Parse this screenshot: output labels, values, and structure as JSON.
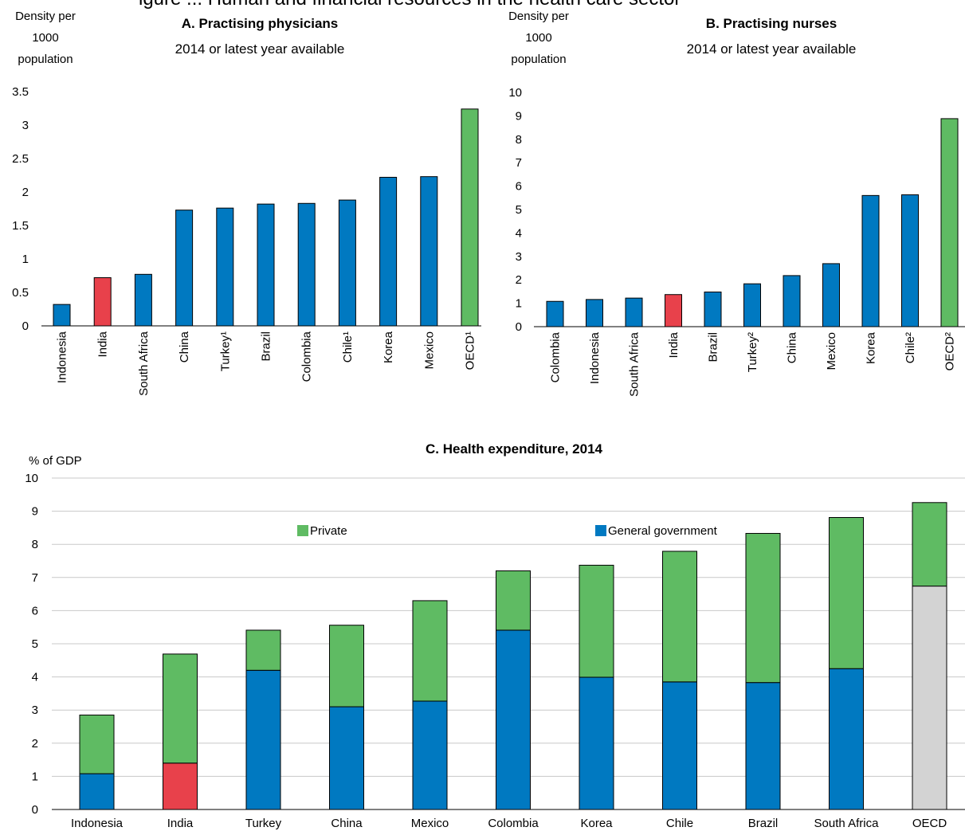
{
  "header_fragment": "igure ... Human and financial resources in the health care sector",
  "chart_data": [
    {
      "type": "bar",
      "title": "A. Practising physicians",
      "subtitle": "2014 or latest year available",
      "ylabel": [
        "Density per",
        "1000",
        "population"
      ],
      "ylim": [
        0,
        3.5
      ],
      "yticks": [
        "0",
        "0.5",
        "1",
        "1.5",
        "2",
        "2.5",
        "3",
        "3.5"
      ],
      "categories": [
        "Indonesia",
        "India",
        "South Africa",
        "China",
        "Turkey¹",
        "Brazil",
        "Colombia",
        "Chile¹",
        "Korea",
        "Mexico",
        "OECD¹"
      ],
      "values": [
        0.32,
        0.72,
        0.77,
        1.73,
        1.76,
        1.82,
        1.83,
        1.88,
        2.22,
        2.23,
        3.24
      ],
      "colors": [
        "#0079c1",
        "#e8414b",
        "#0079c1",
        "#0079c1",
        "#0079c1",
        "#0079c1",
        "#0079c1",
        "#0079c1",
        "#0079c1",
        "#0079c1",
        "#5fbb63"
      ]
    },
    {
      "type": "bar",
      "title": "B. Practising nurses",
      "subtitle": "2014 or latest year available",
      "ylabel": [
        "Density per",
        "1000",
        "population"
      ],
      "ylim": [
        0,
        10
      ],
      "yticks": [
        "0",
        "1",
        "2",
        "3",
        "4",
        "5",
        "6",
        "7",
        "8",
        "9",
        "10"
      ],
      "categories": [
        "Colombia",
        "Indonesia",
        "South Africa",
        "India",
        "Brazil",
        "Turkey²",
        "China",
        "Mexico",
        "Korea",
        "Chile²",
        "OECD²"
      ],
      "values": [
        1.08,
        1.16,
        1.22,
        1.37,
        1.48,
        1.83,
        2.18,
        2.69,
        5.6,
        5.63,
        8.88
      ],
      "colors": [
        "#0079c1",
        "#0079c1",
        "#0079c1",
        "#e8414b",
        "#0079c1",
        "#0079c1",
        "#0079c1",
        "#0079c1",
        "#0079c1",
        "#0079c1",
        "#5fbb63"
      ]
    },
    {
      "type": "bar",
      "stacked": true,
      "title": "C. Health expenditure, 2014",
      "ylabel": "% of GDP",
      "ylim": [
        0,
        10
      ],
      "yticks": [
        "0",
        "1",
        "2",
        "3",
        "4",
        "5",
        "6",
        "7",
        "8",
        "9",
        "10"
      ],
      "categories": [
        "Indonesia",
        "India",
        "Turkey",
        "China",
        "Mexico",
        "Colombia",
        "Korea",
        "Chile",
        "Brazil",
        "South Africa",
        "OECD"
      ],
      "series": [
        {
          "name": "General government",
          "values": [
            1.08,
            1.4,
            4.2,
            3.1,
            3.27,
            5.41,
            3.99,
            3.85,
            3.83,
            4.25,
            6.74
          ],
          "colors": [
            "#0079c1",
            "#e8414b",
            "#0079c1",
            "#0079c1",
            "#0079c1",
            "#0079c1",
            "#0079c1",
            "#0079c1",
            "#0079c1",
            "#0079c1",
            "#d3d3d3"
          ]
        },
        {
          "name": "Private",
          "values": [
            1.77,
            3.29,
            1.21,
            2.46,
            3.03,
            1.79,
            3.38,
            3.94,
            4.5,
            4.56,
            2.52
          ],
          "colors": [
            "#5fbb63",
            "#5fbb63",
            "#5fbb63",
            "#5fbb63",
            "#5fbb63",
            "#5fbb63",
            "#5fbb63",
            "#5fbb63",
            "#5fbb63",
            "#5fbb63",
            "#5fbb63"
          ]
        }
      ],
      "legend": [
        {
          "label": "Private",
          "color": "#5fbb63"
        },
        {
          "label": "General government",
          "color": "#0079c1"
        }
      ],
      "grid": true
    }
  ]
}
